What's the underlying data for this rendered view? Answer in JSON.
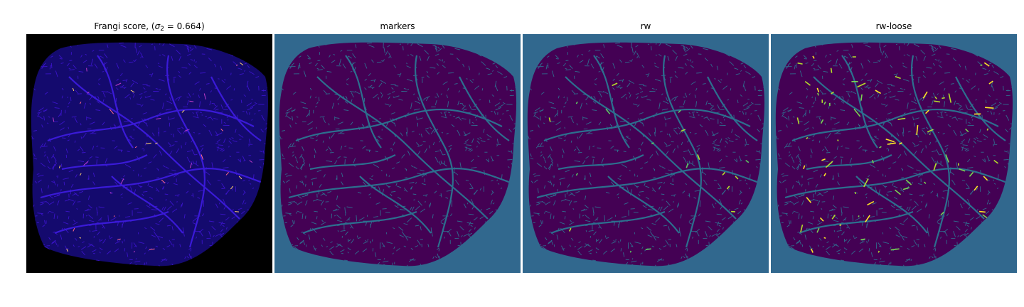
{
  "figure": {
    "panels": [
      {
        "title_prefix": "Frangi score, (",
        "title_symbol": "σ",
        "title_subscript": "2",
        "title_suffix": " = 0.664)",
        "background_color": "#000000",
        "blob_color": "#140a6e",
        "texture_color": "#3a14c8",
        "vessel_color": "#3a1ad8",
        "highlight_colors": [
          "#c03cc8",
          "#ffd070",
          "#ff6a8a"
        ]
      },
      {
        "title": "markers",
        "background_color": "#31688e",
        "blob_color": "#440154",
        "texture_color": "#2f6c8e",
        "vessel_color": "#2c6f8e"
      },
      {
        "title": "rw",
        "background_color": "#31688e",
        "blob_color": "#440154",
        "texture_color": "#2f6c8e",
        "vessel_color": "#2c6f8e",
        "highlight_colors": [
          "#5ec962",
          "#b5de2b"
        ]
      },
      {
        "title": "rw-loose",
        "background_color": "#31688e",
        "blob_color": "#440154",
        "texture_color": "#2f6c8e",
        "vessel_color": "#2c6f8e",
        "highlight_colors": [
          "#b5de2b",
          "#fde725",
          "#7ad151"
        ]
      }
    ]
  }
}
